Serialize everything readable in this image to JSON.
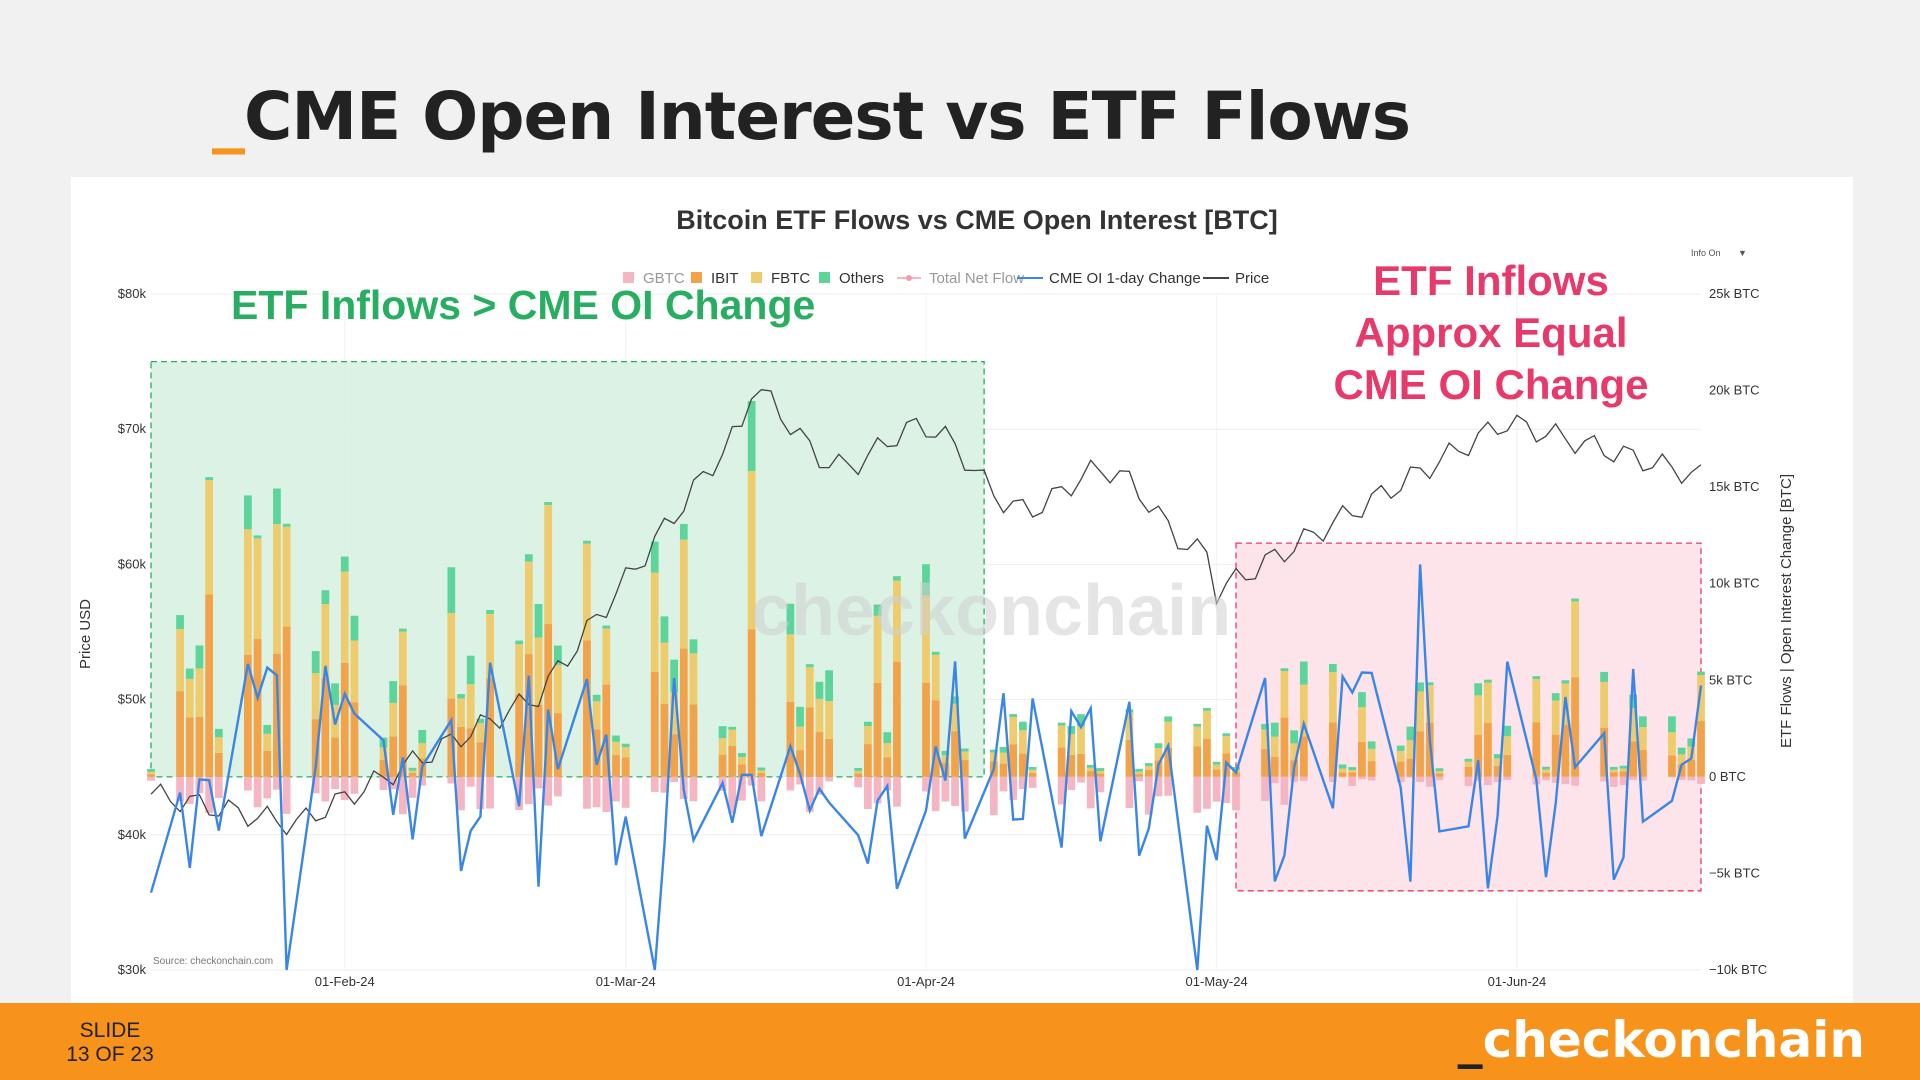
{
  "slide": {
    "title_prefix": "_",
    "title": "CME Open Interest vs ETF Flows",
    "counter_line1": "SLIDE",
    "counter_line2": "13 OF 23",
    "brand_prefix": "_",
    "brand": "checkonchain"
  },
  "colors": {
    "gbtc": "#f4b6c2",
    "ibit": "#f2a248",
    "fbtc": "#eecb6c",
    "others": "#5dd49a",
    "total_net_flow": "#f59ab0",
    "cme_oi": "#3a86e8",
    "price": "#444444",
    "green_region": "#27ae60",
    "pink_region": "#e8396b"
  },
  "chart_data": {
    "type": "bar",
    "title": "Bitcoin ETF Flows vs CME Open Interest [BTC]",
    "info_toggle": "Info On",
    "info_arrow": "▼",
    "watermark": "checkonchain",
    "source": "Source: checkonchain.com",
    "legend_position": "top",
    "legend": [
      {
        "key": "gbtc",
        "label": "GBTC",
        "marker": "square"
      },
      {
        "key": "ibit",
        "label": "IBIT",
        "marker": "square"
      },
      {
        "key": "fbtc",
        "label": "FBTC",
        "marker": "square"
      },
      {
        "key": "others",
        "label": "Others",
        "marker": "square"
      },
      {
        "key": "total_net_flow",
        "label": "Total Net Flow",
        "marker": "line-dot"
      },
      {
        "key": "cme_oi",
        "label": "CME OI 1-day Change",
        "marker": "line"
      },
      {
        "key": "price",
        "label": "Price",
        "marker": "line"
      }
    ],
    "ylabel_left": "Price USD",
    "ylabel_right": "ETF Flows | Open Interest Change [BTC]",
    "y_left": {
      "min": 30000,
      "max": 80000,
      "ticks": [
        {
          "v": 30000,
          "label": "$30k"
        },
        {
          "v": 40000,
          "label": "$40k"
        },
        {
          "v": 50000,
          "label": "$50k"
        },
        {
          "v": 60000,
          "label": "$60k"
        },
        {
          "v": 70000,
          "label": "$70k"
        },
        {
          "v": 80000,
          "label": "$80k"
        }
      ]
    },
    "y_right": {
      "min": -10000,
      "max": 25000,
      "ticks": [
        {
          "v": -10000,
          "label": "−10k BTC"
        },
        {
          "v": -5000,
          "label": "−5k BTC"
        },
        {
          "v": 0,
          "label": "0 BTC"
        },
        {
          "v": 5000,
          "label": "5k BTC"
        },
        {
          "v": 10000,
          "label": "10k BTC"
        },
        {
          "v": 15000,
          "label": "15k BTC"
        },
        {
          "v": 20000,
          "label": "20k BTC"
        },
        {
          "v": 25000,
          "label": "25k BTC"
        }
      ]
    },
    "x_ticks": [
      {
        "day": 20,
        "label": "01-Feb-24"
      },
      {
        "day": 49,
        "label": "01-Mar-24"
      },
      {
        "day": 80,
        "label": "01-Apr-24"
      },
      {
        "day": 110,
        "label": "01-May-24"
      },
      {
        "day": 141,
        "label": "01-Jun-24"
      }
    ]
  },
  "regions": [
    {
      "label": "ETF Inflows > CME OI Change",
      "color": "green",
      "x_start_day": 0,
      "x_end_day": 86,
      "y_min": 0,
      "y_max": 21500,
      "align": "left"
    },
    {
      "label_lines": [
        "ETF Inflows",
        "Approx Equal",
        "CME OI Change"
      ],
      "color": "pink",
      "x_start_day": 112,
      "x_end_day": 160,
      "y_min": -5900,
      "y_max": 12100,
      "align": "center"
    }
  ]
}
